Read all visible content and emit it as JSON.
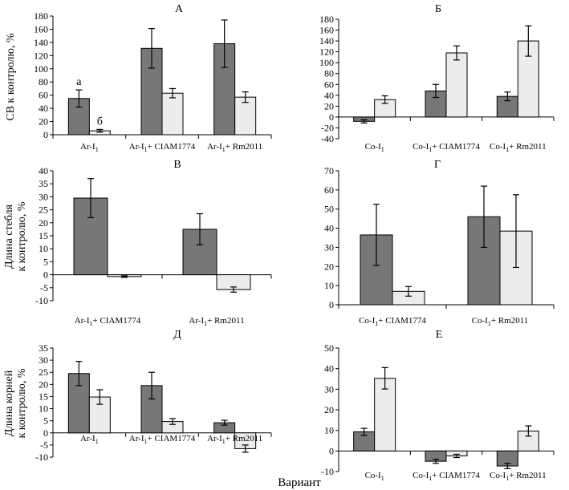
{
  "figure": {
    "ylabels": {
      "sv": "СВ к контролю, %",
      "stem_1": "Длина стебля",
      "stem_2": "к контролю, %",
      "root_1": "Длина корней",
      "root_2": "к контролю, %"
    },
    "xlabel": "Вариант",
    "colors": {
      "dark": "#777777",
      "light": "#ececec",
      "axis": "#000000"
    }
  },
  "chart_data": [
    {
      "panel": "A",
      "title": "А",
      "type": "bar",
      "categories": [
        "Ar-I1",
        "Ar-I1+ CIAM1774",
        "Ar-I1+ Rm2011"
      ],
      "series": [
        {
          "name": "a",
          "values": [
            55,
            131,
            138
          ],
          "errors": [
            13,
            30,
            36
          ]
        },
        {
          "name": "б",
          "values": [
            6,
            63,
            57
          ],
          "errors": [
            2,
            7,
            8
          ]
        }
      ],
      "ylim": [
        0,
        180
      ],
      "ticks": [
        0,
        20,
        40,
        60,
        80,
        100,
        120,
        140,
        160,
        180
      ],
      "annotations": [
        "а",
        "б"
      ]
    },
    {
      "panel": "B6",
      "title": "Б",
      "type": "bar",
      "categories": [
        "Co-I1",
        "Co-I1+ CIAM1774",
        "Co-I1+ Rm2011"
      ],
      "series": [
        {
          "name": "a",
          "values": [
            -8,
            48,
            38
          ],
          "errors": [
            3,
            12,
            8
          ]
        },
        {
          "name": "б",
          "values": [
            32,
            118,
            140
          ],
          "errors": [
            7,
            13,
            28
          ]
        }
      ],
      "ylim": [
        -40,
        180
      ],
      "ticks": [
        -40,
        -20,
        0,
        20,
        40,
        60,
        80,
        100,
        120,
        140,
        160,
        180
      ]
    },
    {
      "panel": "V",
      "title": "В",
      "type": "bar",
      "categories": [
        "Ar-I1+ CIAM1774",
        "Ar-I1+ Rm2011"
      ],
      "series": [
        {
          "name": "a",
          "values": [
            29.5,
            17.5
          ],
          "errors": [
            7.5,
            6
          ]
        },
        {
          "name": "б",
          "values": [
            -0.7,
            -5.7
          ],
          "errors": [
            0.3,
            1
          ]
        }
      ],
      "ylim": [
        -10,
        40
      ],
      "ticks": [
        -10,
        -5,
        0,
        5,
        10,
        15,
        20,
        25,
        30,
        35,
        40
      ]
    },
    {
      "panel": "G",
      "title": "Г",
      "type": "bar",
      "categories": [
        "Co-I1+ CIAM1774",
        "Co-I1+ Rm2011"
      ],
      "series": [
        {
          "name": "a",
          "values": [
            36.5,
            46
          ],
          "errors": [
            16,
            16
          ]
        },
        {
          "name": "б",
          "values": [
            7,
            38.5
          ],
          "errors": [
            2.5,
            19
          ]
        }
      ],
      "ylim": [
        0,
        70
      ],
      "ticks": [
        0,
        10,
        20,
        30,
        40,
        50,
        60,
        70
      ]
    },
    {
      "panel": "D",
      "title": "Д",
      "type": "bar",
      "categories": [
        "Ar-I1",
        "Ar-I1+ CIAM1774",
        "Ar-I1+ Rm2011"
      ],
      "series": [
        {
          "name": "a",
          "values": [
            24.5,
            19.5,
            4.2
          ],
          "errors": [
            5,
            5.5,
            1
          ]
        },
        {
          "name": "б",
          "values": [
            14.8,
            4.7,
            -6.5
          ],
          "errors": [
            3,
            1.2,
            1.5
          ]
        }
      ],
      "ylim": [
        -10,
        35
      ],
      "ticks": [
        -10,
        -5,
        0,
        5,
        10,
        15,
        20,
        25,
        30,
        35
      ]
    },
    {
      "panel": "E",
      "title": "Е",
      "type": "bar",
      "categories": [
        "Co-I1",
        "Co-I1+ CIAM1774",
        "Co-I1+ Rm2011"
      ],
      "series": [
        {
          "name": "a",
          "values": [
            9.3,
            -5,
            -7.3
          ],
          "errors": [
            1.7,
            1,
            1.3
          ]
        },
        {
          "name": "б",
          "values": [
            35.3,
            -2.4,
            9.7
          ],
          "errors": [
            5.2,
            0.8,
            2.5
          ]
        }
      ],
      "ylim": [
        -10,
        50
      ],
      "ticks": [
        -10,
        0,
        10,
        20,
        30,
        40,
        50
      ]
    }
  ]
}
